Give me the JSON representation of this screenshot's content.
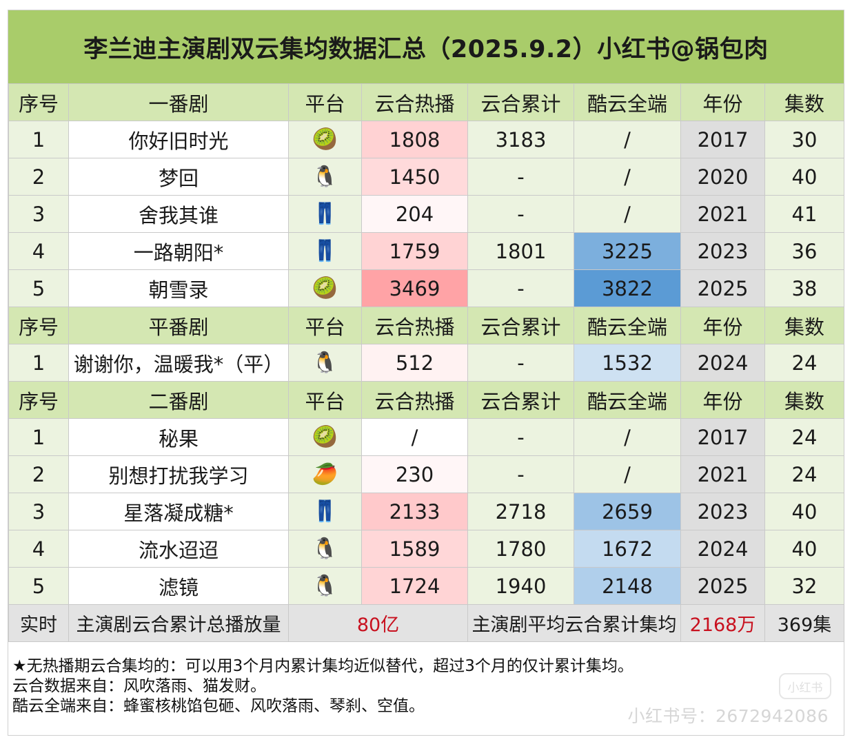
{
  "title": "李兰迪主演剧双云集均数据汇总（2025.9.2）小红书@锅包肉",
  "colors": {
    "title_bg": "#a9cc6a",
    "header_bg": "#d4e7b2",
    "hot_scale": "#ff6f73",
    "ku_scale": "#5b9bd5",
    "year_bg": "#dedede",
    "summary_red": "#c8101e"
  },
  "sections": [
    {
      "header": {
        "seq": "序号",
        "category": "一番剧",
        "platform": "平台",
        "hot": "云合热播",
        "cumulative": "云合累计",
        "ku": "酷云全端",
        "year": "年份",
        "episodes": "集数"
      },
      "rows": [
        {
          "seq": "1",
          "name": "你好旧时光",
          "platform_icon": "kiwi-icon",
          "platform": "🥝",
          "hot": "1808",
          "hot_level": 0.42,
          "cumulative": "3183",
          "ku": "/",
          "ku_level": 0,
          "year": "2017",
          "episodes": "30"
        },
        {
          "seq": "2",
          "name": "梦回",
          "platform_icon": "penguin-icon",
          "platform": "🐧",
          "hot": "1450",
          "hot_level": 0.34,
          "cumulative": "-",
          "ku": "/",
          "ku_level": 0,
          "year": "2020",
          "episodes": "40"
        },
        {
          "seq": "3",
          "name": "舍我其谁",
          "platform_icon": "jeans-icon",
          "platform": "👖",
          "hot": "204",
          "hot_level": 0.06,
          "cumulative": "-",
          "ku": "/",
          "ku_level": 0,
          "year": "2021",
          "episodes": "41"
        },
        {
          "seq": "4",
          "name": "一路朝阳*",
          "platform_icon": "jeans-icon",
          "platform": "👖",
          "hot": "1759",
          "hot_level": 0.41,
          "cumulative": "1801",
          "ku": "3225",
          "ku_level": 0.8,
          "year": "2023",
          "episodes": "36"
        },
        {
          "seq": "5",
          "name": "朝雪录",
          "platform_icon": "kiwi-icon",
          "platform": "🥝",
          "hot": "3469",
          "hot_level": 0.85,
          "cumulative": "-",
          "ku": "3822",
          "ku_level": 1.0,
          "year": "2025",
          "episodes": "38"
        }
      ]
    },
    {
      "header": {
        "seq": "序号",
        "category": "平番剧",
        "platform": "平台",
        "hot": "云合热播",
        "cumulative": "云合累计",
        "ku": "酷云全端",
        "year": "年份",
        "episodes": "集数"
      },
      "rows": [
        {
          "seq": "1",
          "name": "谢谢你，温暖我*（平）",
          "platform_icon": "penguin-icon",
          "platform": "🐧",
          "hot": "512",
          "hot_level": 0.12,
          "cumulative": "-",
          "ku": "1532",
          "ku_level": 0.3,
          "year": "2024",
          "episodes": "24"
        }
      ]
    },
    {
      "header": {
        "seq": "序号",
        "category": "二番剧",
        "platform": "平台",
        "hot": "云合热播",
        "cumulative": "云合累计",
        "ku": "酷云全端",
        "year": "年份",
        "episodes": "集数"
      },
      "rows": [
        {
          "seq": "1",
          "name": "秘果",
          "platform_icon": "kiwi-icon",
          "platform": "🥝",
          "hot": "/",
          "hot_level": 0,
          "cumulative": "-",
          "ku": "/",
          "ku_level": 0,
          "year": "2017",
          "episodes": "24"
        },
        {
          "seq": "2",
          "name": "别想打扰我学习",
          "platform_icon": "mango-icon",
          "platform": "🥭",
          "hot": "230",
          "hot_level": 0.07,
          "cumulative": "-",
          "ku": "/",
          "ku_level": 0,
          "year": "2021",
          "episodes": "24"
        },
        {
          "seq": "3",
          "name": "星落凝成糖*",
          "platform_icon": "jeans-icon",
          "platform": "👖",
          "hot": "2133",
          "hot_level": 0.5,
          "cumulative": "2718",
          "ku": "2659",
          "ku_level": 0.6,
          "year": "2023",
          "episodes": "40"
        },
        {
          "seq": "4",
          "name": "流水迢迢",
          "platform_icon": "penguin-icon",
          "platform": "🐧",
          "hot": "1589",
          "hot_level": 0.37,
          "cumulative": "1780",
          "ku": "1672",
          "ku_level": 0.36,
          "year": "2024",
          "episodes": "40"
        },
        {
          "seq": "5",
          "name": "滤镜",
          "platform_icon": "penguin-icon",
          "platform": "🐧",
          "hot": "1724",
          "hot_level": 0.4,
          "cumulative": "1940",
          "ku": "2148",
          "ku_level": 0.48,
          "year": "2025",
          "episodes": "32"
        }
      ]
    }
  ],
  "summary": {
    "label": "实时",
    "total_label": "主演剧云合累计总播放量",
    "total_value": "80亿",
    "avg_label": "主演剧平均云合累计集均",
    "avg_value": "2168万",
    "episodes_total": "369集"
  },
  "notes": [
    "★无热播期云合集均的：可以用3个月内累计集均近似替代，超过3个月的仅计累计集均。",
    "云合数据来自：风吹落雨、猫发财。",
    "酷云全端来自：蜂蜜核桃馅包砸、风吹落雨、琴刹、空值。"
  ],
  "watermark": {
    "logo_text": "小红书",
    "id_text": "小红书号：2672942086"
  }
}
